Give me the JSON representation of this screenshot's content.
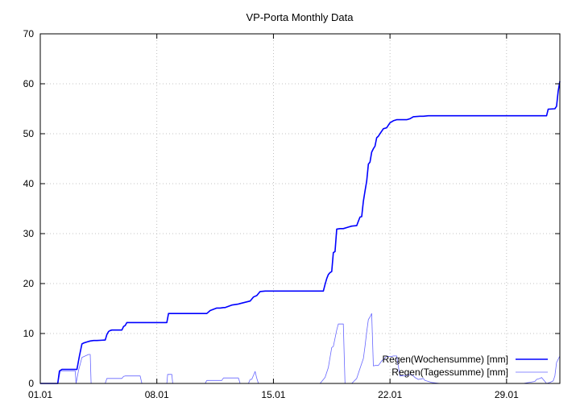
{
  "chart_data": {
    "type": "line",
    "title": "VP-Porta Monthly Data",
    "xlabel": "",
    "ylabel": "",
    "x_ticks": [
      "01.01",
      "08.01",
      "15.01",
      "22.01",
      "29.01"
    ],
    "x_tick_days": [
      1,
      8,
      15,
      22,
      29
    ],
    "xlim": [
      1,
      32.2
    ],
    "ylim": [
      0,
      70
    ],
    "y_ticks": [
      0,
      10,
      20,
      30,
      40,
      50,
      60,
      70
    ],
    "grid": true,
    "legend_position": "bottom-right",
    "series": [
      {
        "name": "Regen(Wochensumme) [mm]",
        "color": "#0000ff",
        "width": "thick",
        "x": [
          1.0,
          2.05,
          2.15,
          2.3,
          3.2,
          3.35,
          3.5,
          3.6,
          3.8,
          4.0,
          4.2,
          4.4,
          4.9,
          5.0,
          5.1,
          5.2,
          5.3,
          5.9,
          6.0,
          6.1,
          6.2,
          6.4,
          7.0,
          7.5,
          8.0,
          8.6,
          8.7,
          9.5,
          11.0,
          11.2,
          11.6,
          11.8,
          12.0,
          12.1,
          12.5,
          12.9,
          13.0,
          13.6,
          13.8,
          14.0,
          14.2,
          14.5,
          17.0,
          18.0,
          18.1,
          18.2,
          18.3,
          18.4,
          18.5,
          18.6,
          18.7,
          18.8,
          19.0,
          19.2,
          19.5,
          19.7,
          20.0,
          20.1,
          20.2,
          20.3,
          20.4,
          20.5,
          20.6,
          20.7,
          20.8,
          20.9,
          21.0,
          21.1,
          21.2,
          21.3,
          21.4,
          21.6,
          21.8,
          22.0,
          22.2,
          22.4,
          22.6,
          23.0,
          23.2,
          23.4,
          23.8,
          24.0,
          24.3,
          25.0,
          28.0,
          30.0,
          31.4,
          31.5,
          31.9,
          32.0,
          32.1,
          32.2
        ],
        "y": [
          0.0,
          0.0,
          2.5,
          2.8,
          2.8,
          5.5,
          7.9,
          8.1,
          8.3,
          8.5,
          8.6,
          8.6,
          8.7,
          9.8,
          10.4,
          10.6,
          10.7,
          10.7,
          11.4,
          11.6,
          12.2,
          12.2,
          12.2,
          12.2,
          12.2,
          12.2,
          14.0,
          14.0,
          14.0,
          14.6,
          15.1,
          15.1,
          15.2,
          15.2,
          15.7,
          15.9,
          16.0,
          16.5,
          17.3,
          17.6,
          18.4,
          18.5,
          18.5,
          18.5,
          19.8,
          21.0,
          21.8,
          22.2,
          22.4,
          26.2,
          26.4,
          30.9,
          31.0,
          31.0,
          31.3,
          31.5,
          31.6,
          32.5,
          33.3,
          33.4,
          36.5,
          38.5,
          40.5,
          43.9,
          44.3,
          46.3,
          47.0,
          47.5,
          49.2,
          49.5,
          50.0,
          51.0,
          51.2,
          52.2,
          52.6,
          52.8,
          52.8,
          52.8,
          53.0,
          53.4,
          53.5,
          53.5,
          53.6,
          53.6,
          53.6,
          53.6,
          53.6,
          54.9,
          55.0,
          55.5,
          58.5,
          60.5
        ]
      },
      {
        "name": "Regen(Tagessumme) [mm]",
        "color": "#6666ff",
        "width": "thin",
        "x": [
          1.0,
          2.05,
          2.2,
          2.4,
          3.1,
          3.15,
          3.3,
          3.5,
          3.7,
          3.9,
          4.0,
          4.05,
          4.1,
          4.9,
          5.0,
          5.1,
          5.9,
          6.0,
          6.1,
          6.2,
          6.3,
          7.0,
          7.1,
          7.9,
          8.0,
          8.6,
          8.65,
          8.9,
          8.95,
          9.0,
          10.9,
          11.0,
          11.1,
          11.9,
          12.0,
          12.1,
          12.9,
          13.0,
          13.1,
          13.5,
          13.6,
          13.7,
          13.9,
          14.0,
          14.1,
          14.2,
          17.8,
          18.1,
          18.3,
          18.5,
          18.6,
          18.8,
          18.9,
          19.2,
          19.3,
          19.6,
          19.7,
          20.0,
          20.2,
          20.4,
          20.5,
          20.6,
          20.7,
          20.8,
          20.9,
          21.0,
          21.1,
          21.3,
          21.5,
          21.8,
          21.9,
          22.1,
          22.2,
          22.4,
          22.6,
          23.0,
          23.1,
          23.3,
          23.5,
          23.7,
          24.0,
          24.1,
          24.3,
          24.5,
          25.0,
          25.5,
          26.0,
          26.2,
          26.5,
          27.0,
          27.2,
          27.5,
          28.0,
          28.5,
          29.0,
          30.0,
          30.7,
          30.8,
          31.0,
          31.1,
          31.4,
          31.6,
          31.8,
          31.9,
          32.0,
          32.2
        ],
        "y": [
          0.0,
          0.0,
          2.5,
          2.5,
          2.5,
          0.0,
          2.6,
          5.2,
          5.5,
          5.8,
          5.8,
          0.0,
          0.0,
          0.0,
          1.0,
          1.0,
          1.0,
          1.4,
          1.5,
          1.5,
          1.5,
          1.5,
          0.0,
          0.0,
          0.0,
          0.0,
          1.8,
          1.8,
          0.0,
          0.0,
          0.0,
          0.6,
          0.6,
          0.6,
          1.1,
          1.1,
          1.1,
          0.0,
          0.0,
          0.0,
          0.8,
          0.8,
          2.4,
          1.0,
          0.0,
          0.0,
          0.0,
          1.2,
          3.2,
          7.2,
          7.4,
          10.7,
          11.9,
          11.9,
          0.0,
          0.0,
          0.0,
          1.0,
          3.0,
          5.0,
          7.4,
          10.3,
          12.8,
          13.3,
          14.0,
          3.5,
          3.6,
          3.6,
          4.5,
          5.4,
          5.4,
          5.4,
          5.5,
          5.5,
          1.5,
          1.6,
          1.7,
          1.8,
          1.2,
          0.8,
          1.0,
          0.6,
          0.4,
          0.2,
          0.0,
          0.0,
          0.0,
          0.0,
          0.0,
          0.0,
          0.0,
          0.0,
          0.0,
          0.0,
          0.0,
          0.0,
          0.4,
          0.8,
          1.0,
          1.2,
          0.0,
          0.2,
          0.5,
          1.5,
          4.2,
          5.5
        ]
      }
    ]
  }
}
